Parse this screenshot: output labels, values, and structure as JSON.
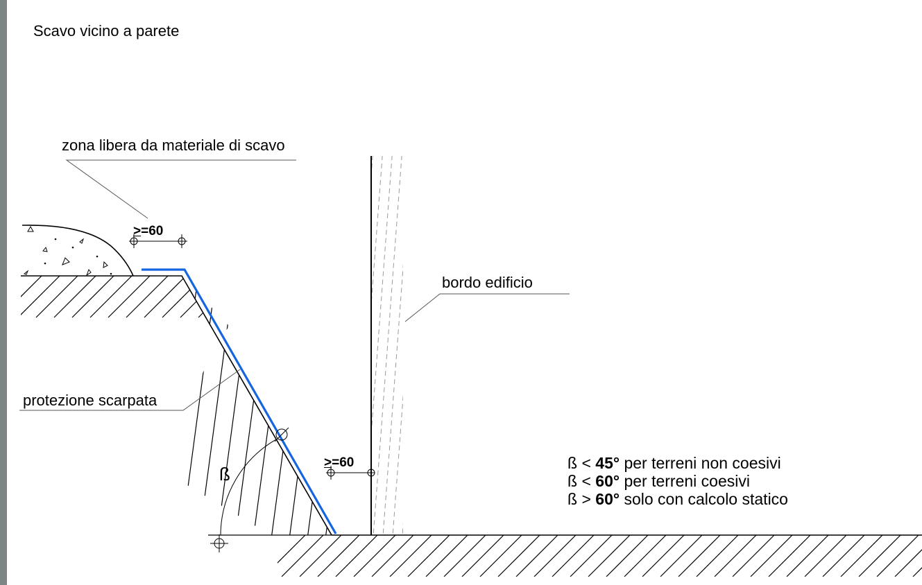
{
  "title": "Scavo vicino a parete",
  "labels": {
    "free_zone": "zona libera da materiale di scavo",
    "building_edge": "bordo edificio",
    "slope_protection": "protezione scarpata",
    "angle_symbol": "ß"
  },
  "dimensions": {
    "top_min": "=60",
    "bottom_min": "=60",
    "ge_symbol": ">"
  },
  "rules": [
    {
      "symbol": "ß",
      "op": "<",
      "angle": "45°",
      "text": "per terreni non coesivi"
    },
    {
      "symbol": "ß",
      "op": "<",
      "angle": "60°",
      "text": "per terreni coesivi"
    },
    {
      "symbol": "ß",
      "op": ">",
      "angle": "60°",
      "text": "solo con calcolo statico"
    }
  ],
  "colors": {
    "protection_line": "#1565e0",
    "line": "#000000",
    "leader": "#555555",
    "wall_hatch": "#9a9a9a",
    "left_strip": "#7d8684"
  }
}
